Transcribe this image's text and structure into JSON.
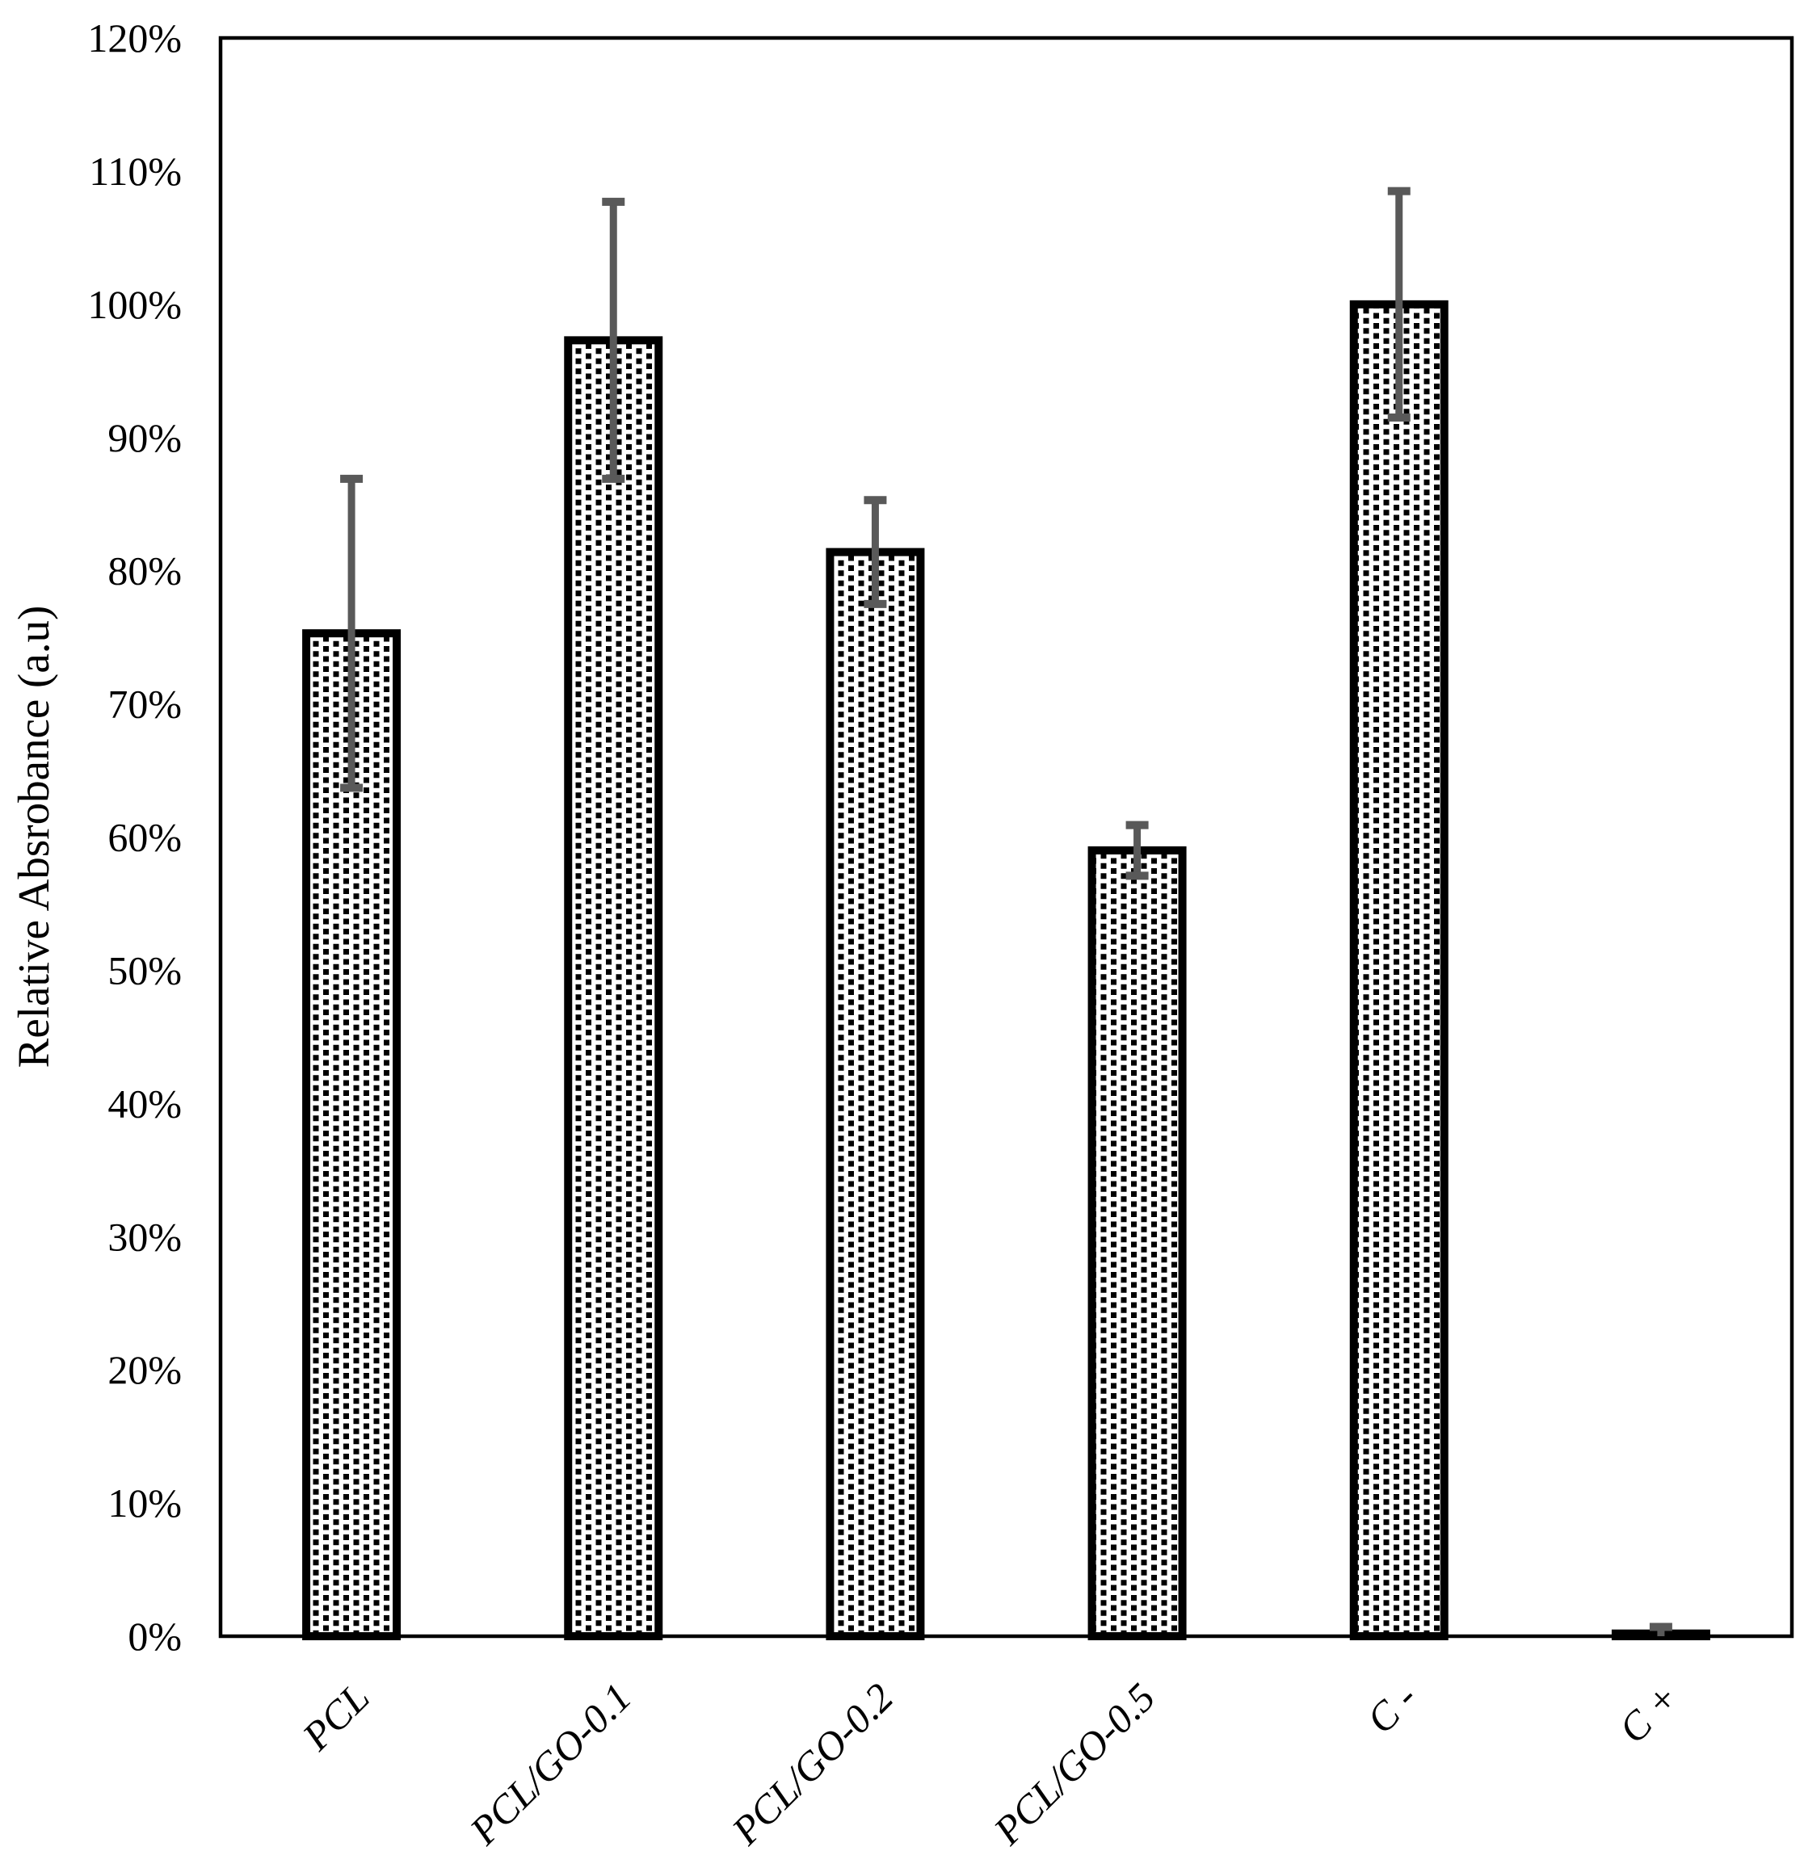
{
  "page": {
    "background_color": "#ffffff"
  },
  "chart_data": {
    "type": "bar",
    "title": "",
    "xlabel": "",
    "ylabel": "Relative Absrobance (a.u)",
    "categories": [
      "PCL",
      "PCL/GO-0.1",
      "PCL/GO-0.2",
      "PCL/GO-0.5",
      "C -",
      "C +"
    ],
    "values": [
      75.3,
      97.3,
      81.4,
      59.0,
      100.0,
      0.2
    ],
    "value_units": "percent",
    "error_bars": [
      11.6,
      10.4,
      3.9,
      1.9,
      8.5,
      0.5
    ],
    "ylim": [
      0,
      120
    ],
    "ytick_step": 10,
    "ytick_labels": [
      "0%",
      "10%",
      "20%",
      "30%",
      "40%",
      "50%",
      "60%",
      "70%",
      "80%",
      "90%",
      "100%",
      "110%",
      "120%"
    ],
    "grid": false,
    "legend": "none",
    "bar_fill": "white with black dotted-square pattern",
    "bar_border_color": "#000000",
    "error_bar_color": "#595959",
    "axis_color": "#000000",
    "text_color": "#000000"
  }
}
